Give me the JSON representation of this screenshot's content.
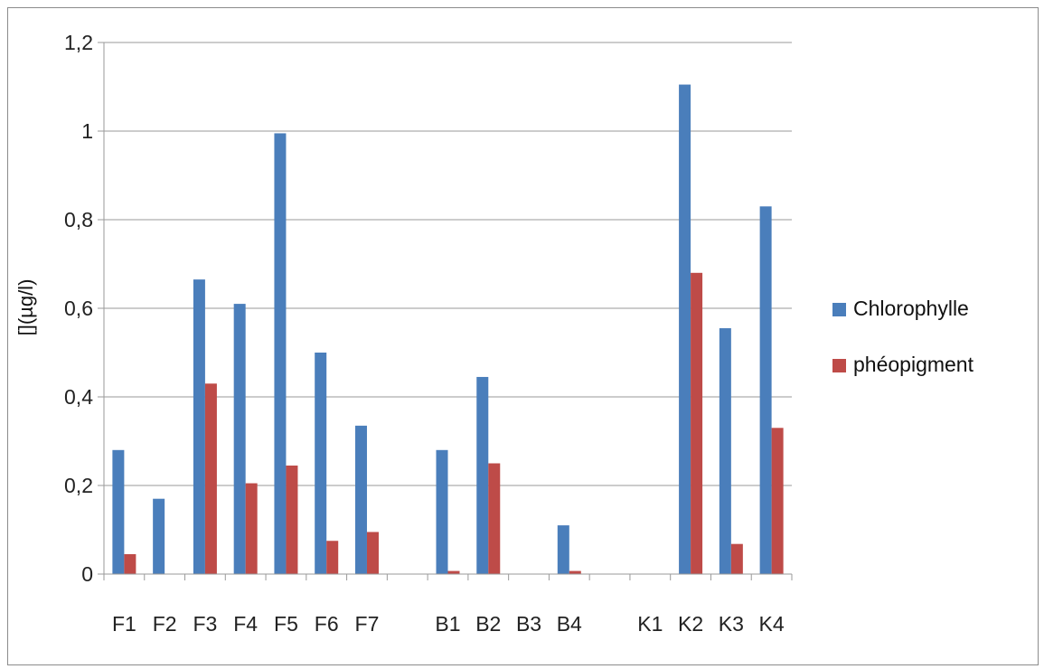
{
  "chart_data": {
    "type": "bar",
    "title": "",
    "xlabel": "",
    "ylabel": "[](µg/l)",
    "ylim": [
      0,
      1.2
    ],
    "yticks": [
      "0",
      "0,2",
      "0,4",
      "0,6",
      "0,8",
      "1",
      "1,2"
    ],
    "ytick_values": [
      0,
      0.2,
      0.4,
      0.6,
      0.8,
      1.0,
      1.2
    ],
    "categories": [
      "F1",
      "F2",
      "F3",
      "F4",
      "F5",
      "F6",
      "F7",
      "",
      "B1",
      "B2",
      "B3",
      "B4",
      "",
      "K1",
      "K2",
      "K3",
      "K4"
    ],
    "series": [
      {
        "name": "Chlorophylle",
        "color": "#4a7ebb",
        "values": [
          0.28,
          0.17,
          0.665,
          0.61,
          0.995,
          0.5,
          0.335,
          0,
          0.28,
          0.445,
          0,
          0.11,
          0,
          0,
          1.105,
          0.555,
          0.83
        ]
      },
      {
        "name": "phéopigment",
        "color": "#be4b48",
        "values": [
          0.045,
          0,
          0.43,
          0.205,
          0.245,
          0.075,
          0.095,
          0,
          0.007,
          0.25,
          0,
          0.007,
          0,
          0,
          0.68,
          0.068,
          0.33
        ]
      }
    ],
    "grid": true,
    "legend_position": "right"
  }
}
